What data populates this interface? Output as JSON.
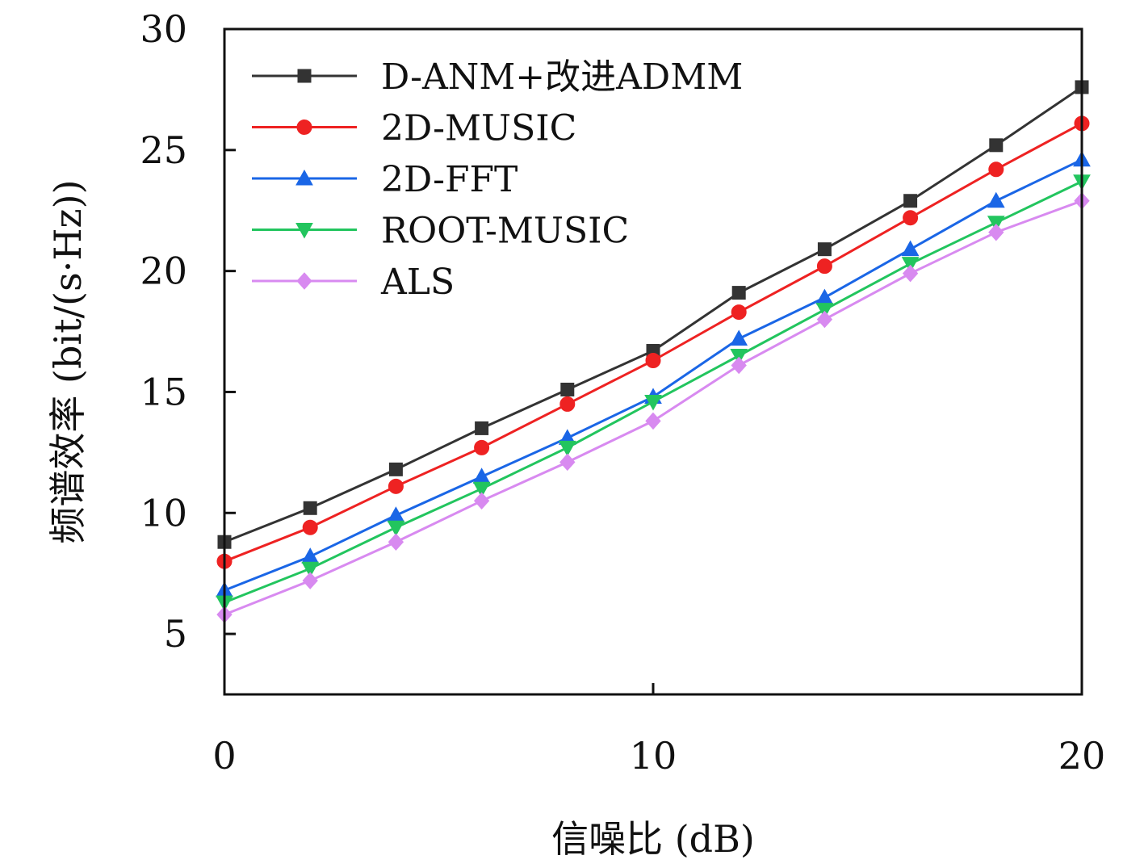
{
  "chart_data": {
    "type": "line",
    "xlabel": "信噪比 (dB)",
    "ylabel": "频谱效率 (bit/(s·Hz))",
    "xlim": [
      0,
      20
    ],
    "ylim": [
      2.5,
      30
    ],
    "xticks": [
      0,
      10,
      20
    ],
    "yticks": [
      5,
      10,
      15,
      20,
      25,
      30
    ],
    "grid": false,
    "legend_position": "top-left",
    "x": [
      0,
      2,
      4,
      6,
      8,
      10,
      12,
      14,
      16,
      18,
      20
    ],
    "series": [
      {
        "name": "D-ANM+改进ADMM",
        "color": "#333333",
        "marker": "square",
        "values": [
          8.8,
          10.2,
          11.8,
          13.5,
          15.1,
          16.7,
          19.1,
          20.9,
          22.9,
          25.2,
          27.6
        ]
      },
      {
        "name": "2D-MUSIC",
        "color": "#ee2222",
        "marker": "circle",
        "values": [
          8.0,
          9.4,
          11.1,
          12.7,
          14.5,
          16.3,
          18.3,
          20.2,
          22.2,
          24.2,
          26.1
        ]
      },
      {
        "name": "2D-FFT",
        "color": "#1a66e6",
        "marker": "triangle-up",
        "values": [
          6.8,
          8.2,
          9.9,
          11.5,
          13.1,
          14.8,
          17.2,
          18.9,
          20.9,
          22.9,
          24.6
        ]
      },
      {
        "name": "ROOT-MUSIC",
        "color": "#22c55e",
        "marker": "triangle-down",
        "values": [
          6.3,
          7.7,
          9.4,
          11.0,
          12.7,
          14.6,
          16.5,
          18.4,
          20.3,
          22.0,
          23.7
        ]
      },
      {
        "name": "ALS",
        "color": "#d88af0",
        "marker": "diamond",
        "values": [
          5.8,
          7.2,
          8.8,
          10.5,
          12.1,
          13.8,
          16.1,
          18.0,
          19.9,
          21.6,
          22.9
        ]
      }
    ]
  }
}
